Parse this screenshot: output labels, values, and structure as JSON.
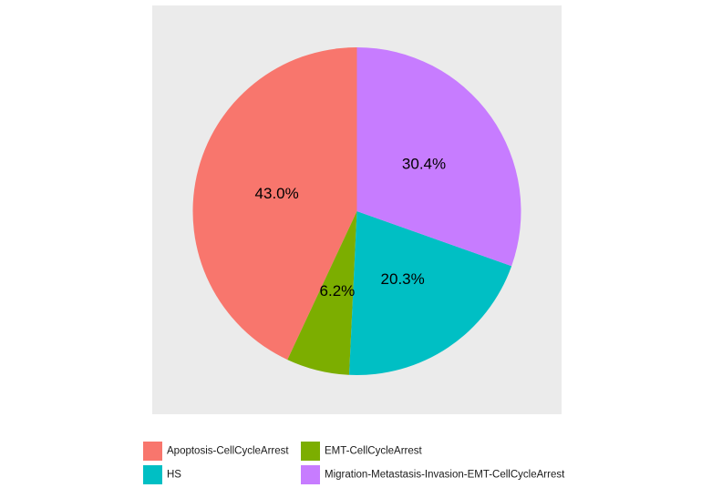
{
  "colors": {
    "panel_background": "#EBEBEB",
    "page_background": "#FFFFFF"
  },
  "chart_data": {
    "type": "pie",
    "title": "",
    "slices": [
      {
        "name": "Apoptosis-CellCycleArrest",
        "value": 43.0,
        "label": "43.0%",
        "color": "#F8766D"
      },
      {
        "name": "EMT-CellCycleArrest",
        "value": 6.2,
        "label": "6.2%",
        "color": "#7CAE00"
      },
      {
        "name": "HS",
        "value": 20.3,
        "label": "20.3%",
        "color": "#00BFC4"
      },
      {
        "name": "Migration-Metastasis-Invasion-EMT-CellCycleArrest",
        "value": 30.4,
        "label": "30.4%",
        "color": "#C77CFF"
      }
    ],
    "start_angle": "12 o'clock",
    "direction": "counterclockwise",
    "legend_position": "bottom",
    "grid": false
  }
}
